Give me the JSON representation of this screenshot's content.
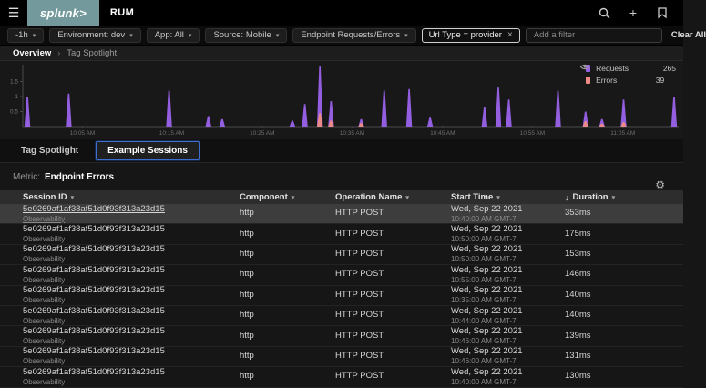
{
  "topbar": {
    "logo": "splunk>",
    "app": "RUM"
  },
  "icons": {
    "menu": "☰",
    "plus": "+",
    "gear": "⚙",
    "caret": "▾",
    "close": "×",
    "chevron": "›",
    "sort_desc": "↓"
  },
  "filters": {
    "dropdowns": [
      "-1h",
      "Environment: dev",
      "App: All",
      "Source: Mobile",
      "Endpoint Requests/Errors"
    ],
    "chip": "Url Type = provider",
    "add_filter_placeholder": "Add a filter",
    "clear_all": "Clear All"
  },
  "breadcrumb": {
    "items": [
      "Overview",
      "Tag Spotlight"
    ]
  },
  "chart_data": {
    "type": "bar",
    "title": "",
    "xlabel": "",
    "ylabel": "",
    "ylim": [
      0,
      2
    ],
    "yticks": [
      0.5,
      1,
      1.5
    ],
    "grid": false,
    "legend_position": "top-right",
    "xticks": [
      {
        "label": "10:05 AM",
        "pos": 0.091
      },
      {
        "label": "10:15 AM",
        "pos": 0.227
      },
      {
        "label": "10:25 AM",
        "pos": 0.365
      },
      {
        "label": "10:35 AM",
        "pos": 0.502
      },
      {
        "label": "10:45 AM",
        "pos": 0.64
      },
      {
        "label": "10:55 AM",
        "pos": 0.777
      },
      {
        "label": "11:05 AM",
        "pos": 0.915
      }
    ],
    "series": [
      {
        "name": "Requests",
        "color": "#9a62ea",
        "total": "265",
        "spikes": [
          [
            0.007,
            1.0
          ],
          [
            0.07,
            1.1
          ],
          [
            0.223,
            1.2
          ],
          [
            0.283,
            0.35
          ],
          [
            0.304,
            0.25
          ],
          [
            0.411,
            0.2
          ],
          [
            0.43,
            0.75
          ],
          [
            0.453,
            2.0
          ],
          [
            0.47,
            0.85
          ],
          [
            0.516,
            0.25
          ],
          [
            0.551,
            1.2
          ],
          [
            0.589,
            1.25
          ],
          [
            0.621,
            0.3
          ],
          [
            0.704,
            0.65
          ],
          [
            0.725,
            1.3
          ],
          [
            0.741,
            0.9
          ],
          [
            0.816,
            1.2
          ],
          [
            0.858,
            0.5
          ],
          [
            0.883,
            0.25
          ],
          [
            0.916,
            0.9
          ],
          [
            0.993,
            1.0
          ]
        ]
      },
      {
        "name": "Errors",
        "color": "#ef8a84",
        "total": "39",
        "spikes": [
          [
            0.453,
            0.45
          ],
          [
            0.47,
            0.2
          ],
          [
            0.516,
            0.12
          ],
          [
            0.858,
            0.18
          ],
          [
            0.883,
            0.1
          ],
          [
            0.916,
            0.15
          ]
        ]
      }
    ]
  },
  "tabs": [
    {
      "label": "Tag Spotlight",
      "active": false
    },
    {
      "label": "Example Sessions",
      "active": true
    }
  ],
  "metric": {
    "label": "Metric:",
    "value": "Endpoint Errors"
  },
  "table": {
    "columns": [
      {
        "label": "Session ID",
        "caret": true
      },
      {
        "label": "Component",
        "caret": true
      },
      {
        "label": "Operation Name",
        "caret": true
      },
      {
        "label": "Start Time",
        "caret": true
      },
      {
        "label": "Duration",
        "caret": true,
        "sorted": true
      }
    ],
    "rows": [
      {
        "session_id": "5e0269af1af38af51d0f93f313a23d15",
        "app": "Observability",
        "component": "http",
        "operation": "HTTP POST",
        "date": "Wed, Sep 22 2021",
        "time": "10:40:00 AM GMT-7",
        "duration": "353ms",
        "hover": true
      },
      {
        "session_id": "5e0269af1af38af51d0f93f313a23d15",
        "app": "Observability",
        "component": "http",
        "operation": "HTTP POST",
        "date": "Wed, Sep 22 2021",
        "time": "10:50:00 AM GMT-7",
        "duration": "175ms",
        "hover": false
      },
      {
        "session_id": "5e0269af1af38af51d0f93f313a23d15",
        "app": "Observability",
        "component": "http",
        "operation": "HTTP POST",
        "date": "Wed, Sep 22 2021",
        "time": "10:50:00 AM GMT-7",
        "duration": "153ms",
        "hover": false
      },
      {
        "session_id": "5e0269af1af38af51d0f93f313a23d15",
        "app": "Observability",
        "component": "http",
        "operation": "HTTP POST",
        "date": "Wed, Sep 22 2021",
        "time": "10:55:00 AM GMT-7",
        "duration": "146ms",
        "hover": false
      },
      {
        "session_id": "5e0269af1af38af51d0f93f313a23d15",
        "app": "Observability",
        "component": "http",
        "operation": "HTTP POST",
        "date": "Wed, Sep 22 2021",
        "time": "10:35:00 AM GMT-7",
        "duration": "140ms",
        "hover": false
      },
      {
        "session_id": "5e0269af1af38af51d0f93f313a23d15",
        "app": "Observability",
        "component": "http",
        "operation": "HTTP POST",
        "date": "Wed, Sep 22 2021",
        "time": "10:44:00 AM GMT-7",
        "duration": "140ms",
        "hover": false
      },
      {
        "session_id": "5e0269af1af38af51d0f93f313a23d15",
        "app": "Observability",
        "component": "http",
        "operation": "HTTP POST",
        "date": "Wed, Sep 22 2021",
        "time": "10:46:00 AM GMT-7",
        "duration": "139ms",
        "hover": false
      },
      {
        "session_id": "5e0269af1af38af51d0f93f313a23d15",
        "app": "Observability",
        "component": "http",
        "operation": "HTTP POST",
        "date": "Wed, Sep 22 2021",
        "time": "10:46:00 AM GMT-7",
        "duration": "131ms",
        "hover": false
      },
      {
        "session_id": "5e0269af1af38af51d0f93f313a23d15",
        "app": "Observability",
        "component": "http",
        "operation": "HTTP POST",
        "date": "Wed, Sep 22 2021",
        "time": "10:40:00 AM GMT-7",
        "duration": "130ms",
        "hover": false
      }
    ]
  }
}
